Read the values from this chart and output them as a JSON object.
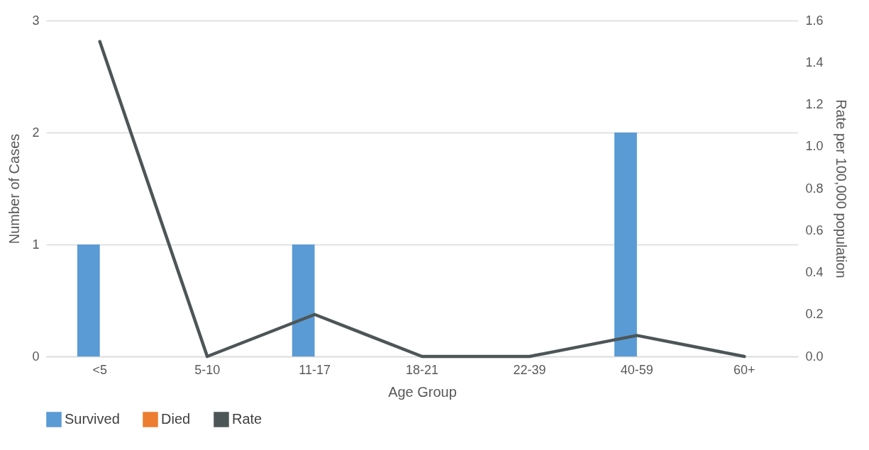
{
  "chart_data": {
    "type": "bar",
    "xlabel": "Age Group",
    "ylabel": "Number of Cases",
    "y2label": "Rate per 100,000 population",
    "categories": [
      "<5",
      "5-10",
      "11-17",
      "18-21",
      "22-39",
      "40-59",
      "60+"
    ],
    "series": [
      {
        "name": "Survived",
        "color": "#5b9bd5",
        "values": [
          1,
          0,
          1,
          0,
          0,
          2,
          0
        ]
      },
      {
        "name": "Died",
        "color": "#ed7d31",
        "values": [
          0,
          0,
          0,
          0,
          0,
          0,
          0
        ]
      },
      {
        "name": "Rate",
        "type": "line",
        "axis": "y2",
        "color": "#4d5656",
        "values": [
          1.5,
          0,
          0.2,
          0,
          0,
          0.1,
          0
        ]
      }
    ],
    "ylim": [
      0,
      3
    ],
    "yticks": [
      0,
      1,
      2,
      3
    ],
    "y2lim": [
      0,
      1.6
    ],
    "y2ticks": [
      {
        "value": 0,
        "label": "0.0"
      },
      {
        "value": 0.2,
        "label": "0.2"
      },
      {
        "value": 0.4,
        "label": "0.4"
      },
      {
        "value": 0.6,
        "label": "0.6"
      },
      {
        "value": 0.8,
        "label": "0.8"
      },
      {
        "value": 1,
        "label": "1.0"
      },
      {
        "value": 1.2,
        "label": "1.2"
      },
      {
        "value": 1.4,
        "label": "1.4"
      },
      {
        "value": 1.6,
        "label": "1.6"
      }
    ],
    "grid": "y",
    "legend": "bottom"
  }
}
